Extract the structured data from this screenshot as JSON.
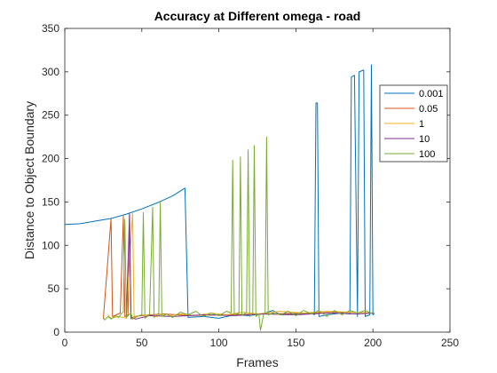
{
  "chart_data": {
    "type": "line",
    "title": "Accuracy at Different omega - road",
    "xlabel": "Frames",
    "ylabel": "Distance to Object Boundary",
    "xlim": [
      0,
      250
    ],
    "ylim": [
      0,
      350
    ],
    "xticks": [
      0,
      50,
      100,
      150,
      200,
      250
    ],
    "yticks": [
      0,
      50,
      100,
      150,
      200,
      250,
      300,
      350
    ],
    "grid": false,
    "legend_position": "upper-right",
    "series": [
      {
        "name": "0.001",
        "color": "#0072BD",
        "points": [
          [
            0,
            124
          ],
          [
            10,
            125
          ],
          [
            20,
            128
          ],
          [
            30,
            131
          ],
          [
            40,
            136
          ],
          [
            50,
            142
          ],
          [
            60,
            149
          ],
          [
            70,
            157
          ],
          [
            78,
            166
          ],
          [
            80,
            17
          ],
          [
            90,
            18
          ],
          [
            100,
            16
          ],
          [
            110,
            20
          ],
          [
            120,
            19
          ],
          [
            130,
            22
          ],
          [
            135,
            25
          ],
          [
            140,
            20
          ],
          [
            150,
            21
          ],
          [
            160,
            22
          ],
          [
            162,
            20
          ],
          [
            163,
            264
          ],
          [
            164,
            264
          ],
          [
            165,
            18
          ],
          [
            170,
            20
          ],
          [
            180,
            22
          ],
          [
            185,
            21
          ],
          [
            186,
            294
          ],
          [
            188,
            296
          ],
          [
            190,
            18
          ],
          [
            191,
            300
          ],
          [
            194,
            302
          ],
          [
            195,
            18
          ],
          [
            198,
            20
          ],
          [
            199,
            308
          ],
          [
            200,
            20
          ],
          [
            201,
            22
          ]
        ]
      },
      {
        "name": "0.05",
        "color": "#D95319",
        "points": [
          [
            25,
            15
          ],
          [
            30,
            131
          ],
          [
            31,
            18
          ],
          [
            36,
            22
          ],
          [
            38,
            134
          ],
          [
            39,
            18
          ],
          [
            41,
            20
          ],
          [
            42,
            136
          ],
          [
            43,
            15
          ],
          [
            45,
            18
          ],
          [
            55,
            20
          ],
          [
            65,
            21
          ],
          [
            80,
            19
          ],
          [
            100,
            20
          ],
          [
            130,
            21
          ],
          [
            160,
            22
          ],
          [
            180,
            23
          ],
          [
            200,
            22
          ]
        ]
      },
      {
        "name": "1",
        "color": "#EDB120",
        "points": [
          [
            28,
            20
          ],
          [
            30,
            16
          ],
          [
            35,
            18
          ],
          [
            40,
            16
          ],
          [
            44,
            138
          ],
          [
            45,
            17
          ],
          [
            50,
            20
          ],
          [
            60,
            18
          ],
          [
            63,
            21
          ],
          [
            65,
            18
          ],
          [
            75,
            21
          ],
          [
            85,
            19
          ],
          [
            95,
            22
          ],
          [
            105,
            20
          ],
          [
            115,
            23
          ],
          [
            125,
            21
          ],
          [
            140,
            24
          ],
          [
            155,
            22
          ],
          [
            170,
            24
          ],
          [
            185,
            23
          ],
          [
            200,
            22
          ]
        ]
      },
      {
        "name": "10",
        "color": "#7E2F8E",
        "points": [
          [
            40,
            18
          ],
          [
            42,
            136
          ],
          [
            43,
            17
          ],
          [
            46,
            15
          ],
          [
            55,
            19
          ],
          [
            70,
            18
          ],
          [
            90,
            20
          ],
          [
            110,
            19
          ],
          [
            130,
            21
          ],
          [
            150,
            20
          ],
          [
            170,
            22
          ],
          [
            190,
            21
          ],
          [
            200,
            22
          ]
        ]
      },
      {
        "name": "100",
        "color": "#77AC30",
        "points": [
          [
            25,
            17
          ],
          [
            26,
            14
          ],
          [
            28,
            18
          ],
          [
            30,
            15
          ],
          [
            33,
            19
          ],
          [
            35,
            17
          ],
          [
            37,
            22
          ],
          [
            38,
            23
          ],
          [
            39,
            130
          ],
          [
            40,
            17
          ],
          [
            43,
            22
          ],
          [
            44,
            15
          ],
          [
            47,
            18
          ],
          [
            50,
            20
          ],
          [
            51,
            138
          ],
          [
            52,
            16
          ],
          [
            55,
            20
          ],
          [
            57,
            144
          ],
          [
            58,
            17
          ],
          [
            61,
            22
          ],
          [
            62,
            150
          ],
          [
            63,
            18
          ],
          [
            66,
            21
          ],
          [
            70,
            17
          ],
          [
            75,
            23
          ],
          [
            80,
            20
          ],
          [
            85,
            24
          ],
          [
            90,
            18
          ],
          [
            95,
            22
          ],
          [
            100,
            19
          ],
          [
            105,
            24
          ],
          [
            108,
            22
          ],
          [
            109,
            198
          ],
          [
            110,
            20
          ],
          [
            113,
            22
          ],
          [
            114,
            202
          ],
          [
            115,
            19
          ],
          [
            118,
            23
          ],
          [
            119,
            210
          ],
          [
            120,
            18
          ],
          [
            122,
            22
          ],
          [
            123,
            215
          ],
          [
            124,
            18
          ],
          [
            126,
            21
          ],
          [
            127,
            2
          ],
          [
            129,
            20
          ],
          [
            130,
            22
          ],
          [
            131,
            225
          ],
          [
            132,
            20
          ],
          [
            135,
            22
          ],
          [
            140,
            20
          ],
          [
            145,
            24
          ],
          [
            150,
            19
          ],
          [
            155,
            25
          ],
          [
            160,
            21
          ],
          [
            165,
            25
          ],
          [
            170,
            18
          ],
          [
            175,
            25
          ],
          [
            180,
            20
          ],
          [
            185,
            25
          ],
          [
            190,
            22
          ],
          [
            195,
            25
          ],
          [
            200,
            21
          ]
        ]
      }
    ]
  }
}
